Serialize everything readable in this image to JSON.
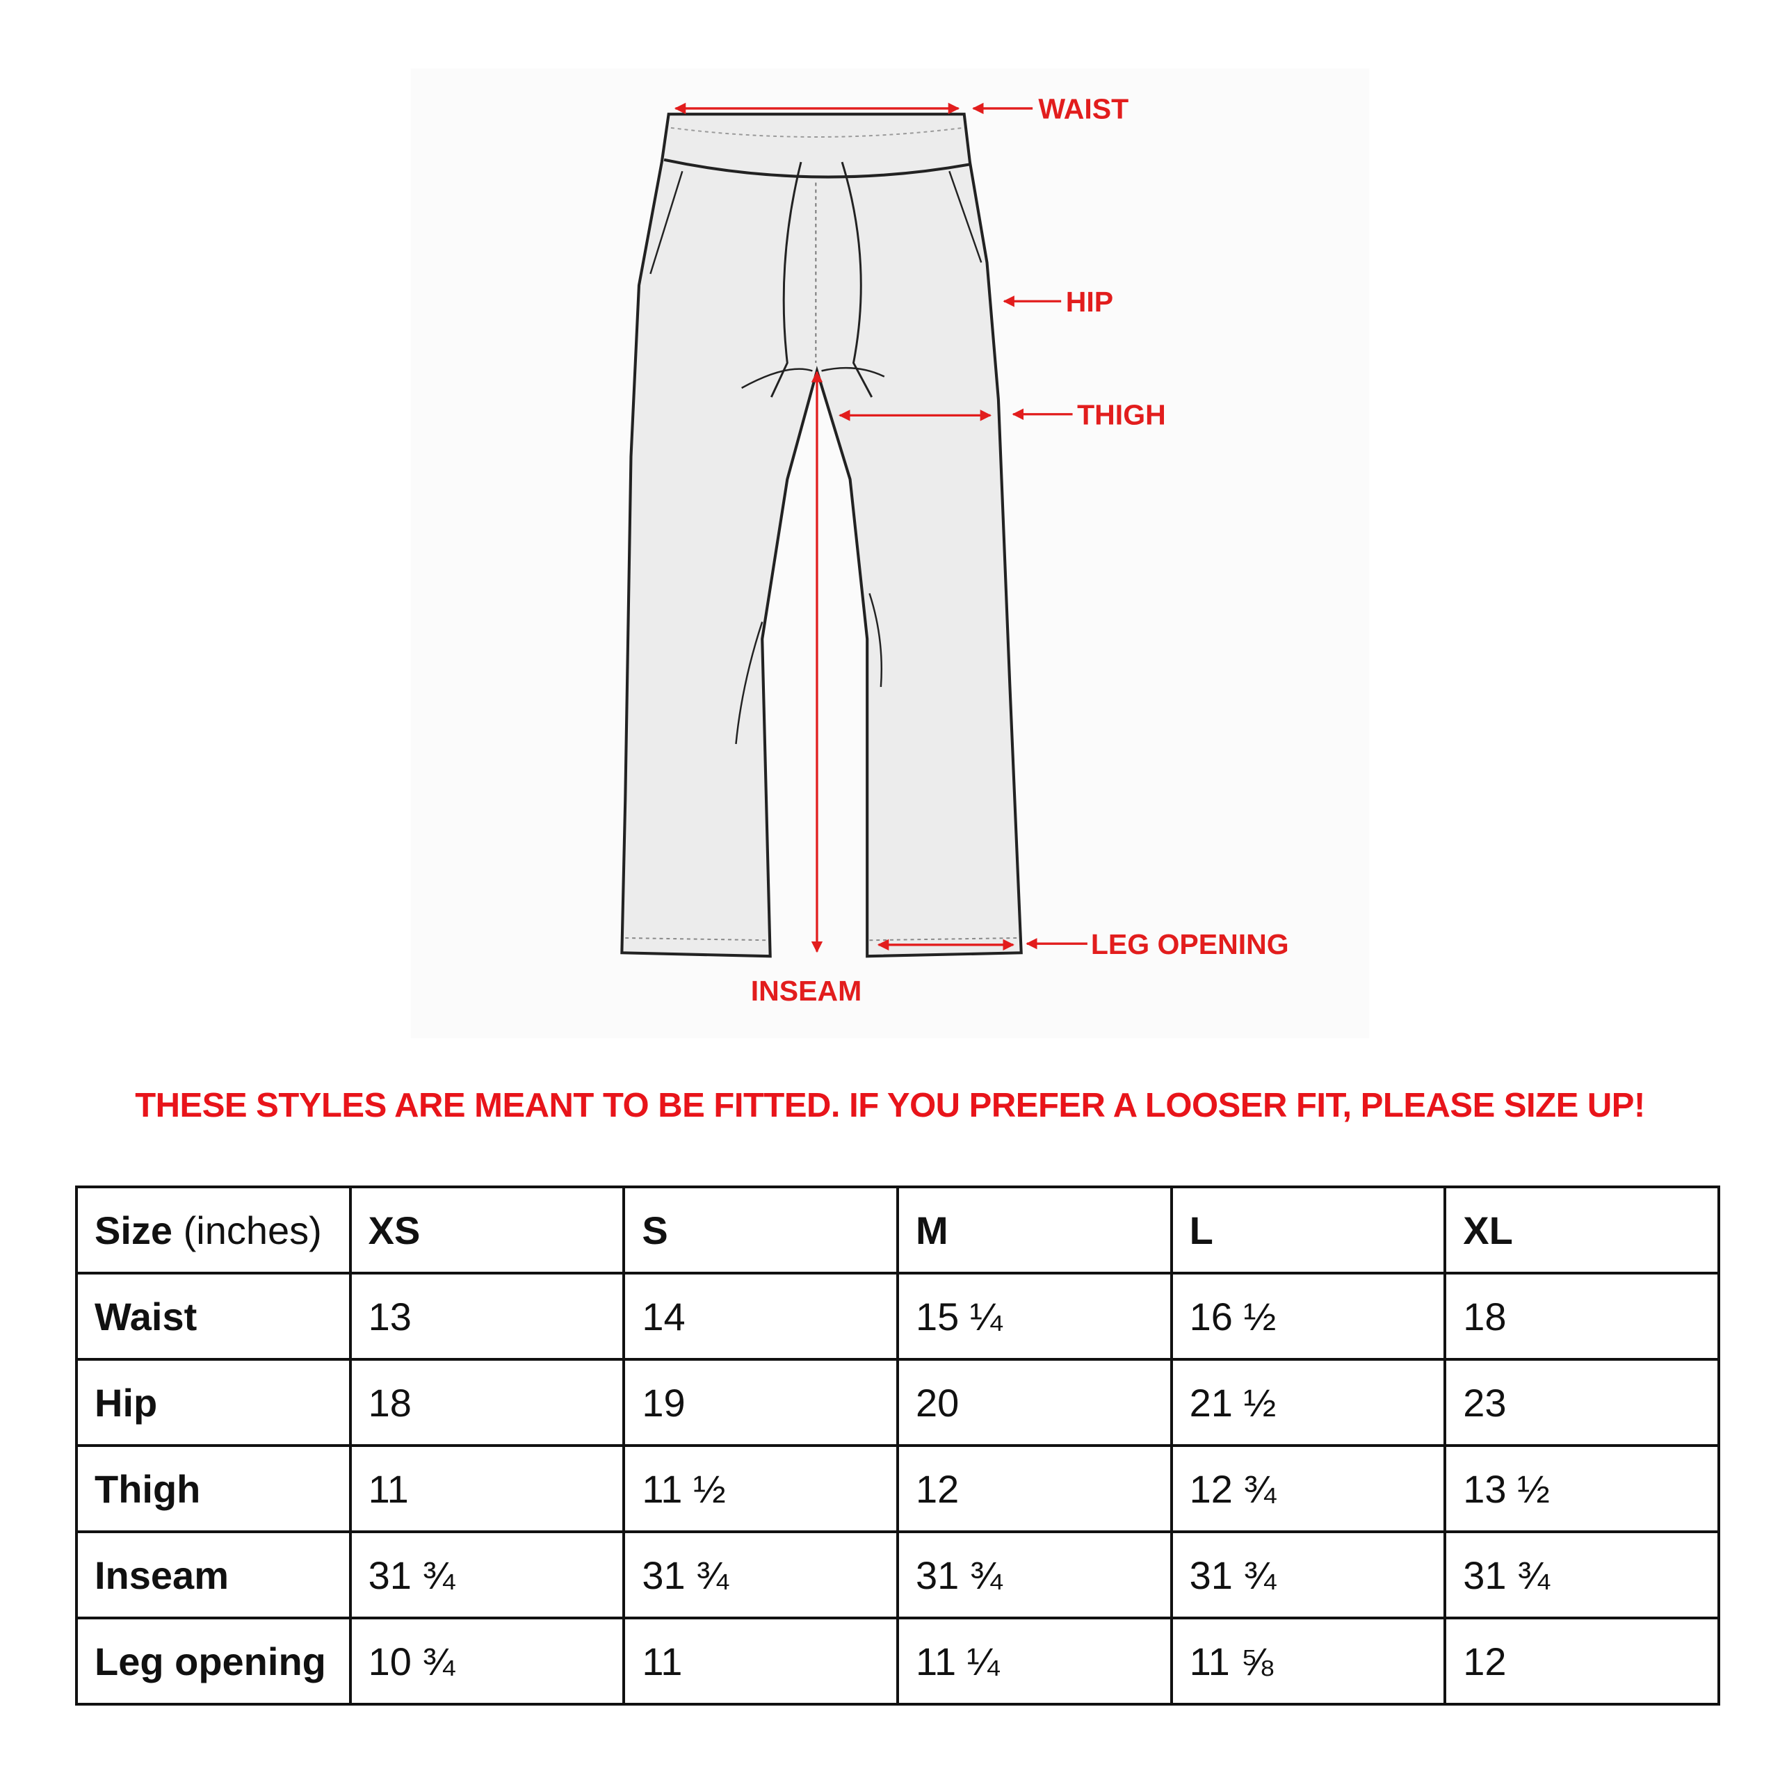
{
  "diagram": {
    "labels": {
      "waist": "WAIST",
      "hip": "HIP",
      "thigh": "THIGH",
      "leg_opening": "LEG OPENING",
      "inseam": "INSEAM"
    },
    "accent_color": "#e21d1d"
  },
  "notice": "THESE STYLES ARE MEANT TO BE FITTED. IF YOU PREFER A LOOSER FIT, PLEASE SIZE UP!",
  "table": {
    "header": {
      "label_bold": "Size",
      "label_unit": "(inches)",
      "sizes": [
        "XS",
        "S",
        "M",
        "L",
        "XL"
      ]
    },
    "rows": [
      {
        "label": "Waist",
        "values": [
          "13",
          "14",
          "15 ¼",
          "16 ½",
          "18"
        ]
      },
      {
        "label": "Hip",
        "values": [
          "18",
          "19",
          "20",
          "21 ½",
          "23"
        ]
      },
      {
        "label": "Thigh",
        "values": [
          "11",
          "11 ½",
          "12",
          "12 ¾",
          "13 ½"
        ]
      },
      {
        "label": "Inseam",
        "values": [
          "31 ¾",
          "31 ¾",
          "31 ¾",
          "31 ¾",
          "31 ¾"
        ]
      },
      {
        "label": "Leg opening",
        "values": [
          "10 ¾",
          "11",
          "11 ¼",
          "11 ⅝",
          "12"
        ]
      }
    ]
  }
}
